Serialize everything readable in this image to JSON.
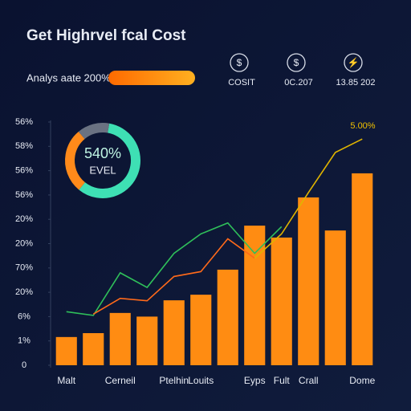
{
  "header": {
    "title": "Get Highrvel fcal Cost",
    "progress_label": "Analys aate 200%"
  },
  "stats": [
    {
      "icon": "$",
      "label": "COSIT"
    },
    {
      "icon": "$",
      "label": "0C.207"
    },
    {
      "icon": "⚡",
      "label": "13.85 202"
    }
  ],
  "donut": {
    "label": "540%",
    "sublabel": "EVEL",
    "values": [
      58,
      28,
      14
    ],
    "colors": [
      "#3ee0b4",
      "#ff8a1a",
      "#6a7282"
    ]
  },
  "chart_data": {
    "type": "bar",
    "categories": [
      "Malt",
      null,
      "Cerneil",
      null,
      "Ptelhin",
      "Louits",
      null,
      "Eyps",
      "Fult",
      "Crall",
      null,
      "Dome"
    ],
    "values": [
      1.16,
      1.32,
      2.15,
      2.0,
      2.67,
      2.9,
      3.93,
      5.74,
      5.25,
      6.9,
      5.54,
      7.89
    ],
    "color": "#ff8c12",
    "lines": [
      {
        "color": "#2fbf5a",
        "values": [
          2.2,
          2.05,
          3.8,
          3.2,
          4.6,
          5.4,
          5.85,
          4.6,
          5.7,
          null,
          null,
          null
        ]
      },
      {
        "color": "#ff6a1a",
        "values": [
          null,
          2.1,
          2.75,
          2.65,
          3.65,
          3.85,
          5.2,
          4.4,
          null,
          null,
          null,
          null
        ]
      },
      {
        "color": "#e0b400",
        "values": [
          null,
          null,
          null,
          null,
          null,
          null,
          null,
          4.4,
          5.4,
          7.1,
          8.75,
          9.3
        ]
      }
    ],
    "annotation": "5.00%",
    "ylim": [
      0,
      10
    ],
    "yticks": [
      0,
      {
        "value": 1,
        "label": "1%"
      },
      {
        "value": 2,
        "label": "6%"
      },
      {
        "value": 3,
        "label": "20%"
      },
      {
        "value": 4,
        "label": "70%"
      },
      {
        "value": 5,
        "label": "20%"
      },
      {
        "value": 6,
        "label": "20%"
      },
      {
        "value": 7,
        "label": "56%"
      },
      {
        "value": 8,
        "label": "56%"
      },
      {
        "value": 9,
        "label": "58%"
      },
      {
        "value": 10,
        "label": "56%"
      }
    ],
    "grid": false
  }
}
